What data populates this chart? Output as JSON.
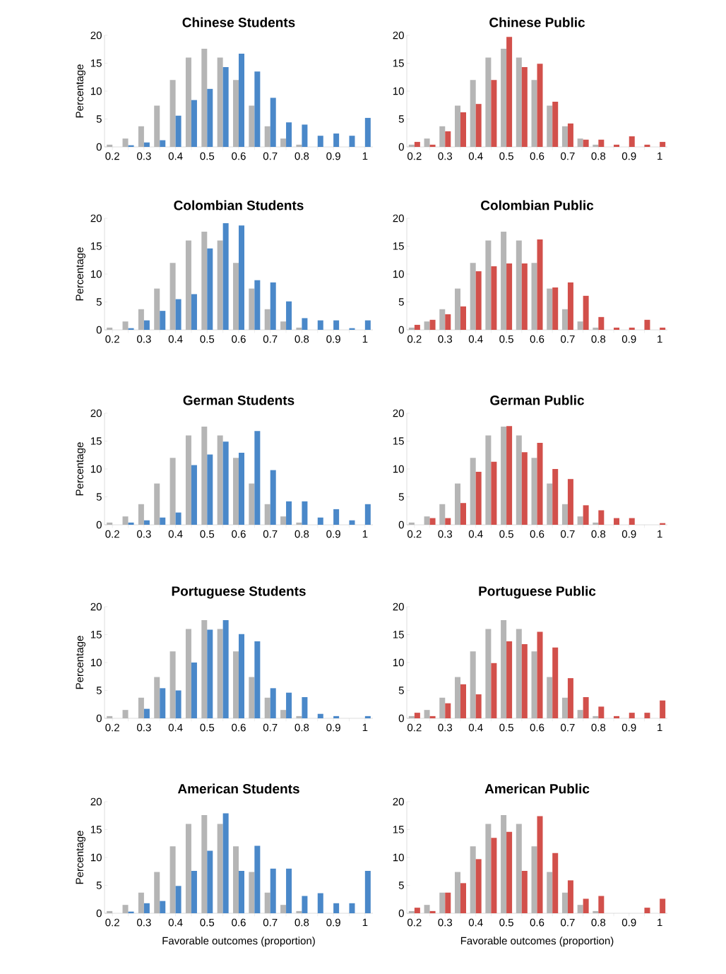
{
  "chart_data": [
    {
      "type": "bar",
      "title": "Chinese Students",
      "ylabel": "Percentage",
      "categories": [
        "0.2",
        null,
        "0.3",
        null,
        "0.4",
        null,
        "0.5",
        null,
        "0.6",
        null,
        "0.7",
        null,
        "0.8",
        null,
        "0.9",
        null,
        "1"
      ],
      "ylim": [
        0,
        20
      ],
      "yticks": [
        0,
        5,
        10,
        15,
        20
      ],
      "series": [
        {
          "color": "#b5b5b5",
          "values": [
            0.4,
            1.5,
            3.7,
            7.4,
            12,
            16,
            17.6,
            16,
            12,
            7.4,
            3.7,
            1.5,
            0.4,
            0,
            0,
            0,
            0
          ]
        },
        {
          "color": "#4a88c9",
          "values": [
            0,
            0.3,
            0.8,
            1.2,
            5.6,
            8.4,
            10.4,
            14.3,
            16.7,
            13.5,
            8.8,
            4.4,
            4.0,
            2.0,
            2.4,
            2.0,
            5.2
          ]
        }
      ]
    },
    {
      "type": "bar",
      "title": "Chinese Public",
      "categories": [
        "0.2",
        null,
        "0.3",
        null,
        "0.4",
        null,
        "0.5",
        null,
        "0.6",
        null,
        "0.7",
        null,
        "0.8",
        null,
        "0.9",
        null,
        "1"
      ],
      "ylim": [
        0,
        20
      ],
      "yticks": [
        0,
        5,
        10,
        15,
        20
      ],
      "series": [
        {
          "color": "#b5b5b5",
          "values": [
            0.4,
            1.5,
            3.7,
            7.4,
            12,
            16,
            17.6,
            16,
            12,
            7.4,
            3.7,
            1.5,
            0.4,
            0,
            0,
            0,
            0
          ]
        },
        {
          "color": "#d2504b",
          "values": [
            0.9,
            0.4,
            2.8,
            6.2,
            7.7,
            12.0,
            19.7,
            14.3,
            14.9,
            8.1,
            4.2,
            1.3,
            1.3,
            0.4,
            1.9,
            0.4,
            0.9
          ]
        }
      ]
    },
    {
      "type": "bar",
      "title": "Colombian Students",
      "ylabel": "Percentage",
      "categories": [
        "0.2",
        null,
        "0.3",
        null,
        "0.4",
        null,
        "0.5",
        null,
        "0.6",
        null,
        "0.7",
        null,
        "0.8",
        null,
        "0.9",
        null,
        "1"
      ],
      "ylim": [
        0,
        20
      ],
      "yticks": [
        0,
        5,
        10,
        15,
        20
      ],
      "series": [
        {
          "color": "#b5b5b5",
          "values": [
            0.4,
            1.5,
            3.7,
            7.4,
            12,
            16,
            17.6,
            16,
            12,
            7.4,
            3.7,
            1.5,
            0.4,
            0,
            0,
            0,
            0
          ]
        },
        {
          "color": "#4a88c9",
          "values": [
            0,
            0.3,
            1.7,
            3.4,
            5.5,
            6.4,
            14.6,
            19.1,
            18.7,
            8.9,
            8.5,
            5.1,
            2.1,
            1.7,
            1.7,
            0.3,
            1.7
          ]
        }
      ]
    },
    {
      "type": "bar",
      "title": "Colombian Public",
      "categories": [
        "0.2",
        null,
        "0.3",
        null,
        "0.4",
        null,
        "0.5",
        null,
        "0.6",
        null,
        "0.7",
        null,
        "0.8",
        null,
        "0.9",
        null,
        "1"
      ],
      "ylim": [
        0,
        20
      ],
      "yticks": [
        0,
        5,
        10,
        15,
        20
      ],
      "series": [
        {
          "color": "#b5b5b5",
          "values": [
            0.4,
            1.5,
            3.7,
            7.4,
            12,
            16,
            17.6,
            16,
            12,
            7.4,
            3.7,
            1.5,
            0.4,
            0,
            0,
            0,
            0
          ]
        },
        {
          "color": "#d2504b",
          "values": [
            0.9,
            1.8,
            2.8,
            4.2,
            10.5,
            11.4,
            11.9,
            11.9,
            16.2,
            7.6,
            8.5,
            6.1,
            2.3,
            0.4,
            0.4,
            1.8,
            0.4
          ]
        }
      ]
    },
    {
      "type": "bar",
      "title": "German Students",
      "ylabel": "Percentage",
      "categories": [
        "0.2",
        null,
        "0.3",
        null,
        "0.4",
        null,
        "0.5",
        null,
        "0.6",
        null,
        "0.7",
        null,
        "0.8",
        null,
        "0.9",
        null,
        "1"
      ],
      "ylim": [
        0,
        20
      ],
      "yticks": [
        0,
        5,
        10,
        15,
        20
      ],
      "series": [
        {
          "color": "#b5b5b5",
          "values": [
            0.4,
            1.5,
            3.7,
            7.4,
            12,
            16,
            17.6,
            16,
            12,
            7.4,
            3.7,
            1.5,
            0.4,
            0,
            0,
            0,
            0
          ]
        },
        {
          "color": "#4a88c9",
          "values": [
            0,
            0.4,
            0.8,
            1.3,
            2.2,
            10.7,
            12.6,
            14.9,
            12.9,
            16.8,
            9.8,
            4.2,
            4.2,
            1.3,
            2.8,
            0.8,
            3.7
          ]
        }
      ]
    },
    {
      "type": "bar",
      "title": "German Public",
      "categories": [
        "0.2",
        null,
        "0.3",
        null,
        "0.4",
        null,
        "0.5",
        null,
        "0.6",
        null,
        "0.7",
        null,
        "0.8",
        null,
        "0.9",
        null,
        "1"
      ],
      "ylim": [
        0,
        20
      ],
      "yticks": [
        0,
        5,
        10,
        15,
        20
      ],
      "series": [
        {
          "color": "#b5b5b5",
          "values": [
            0.4,
            1.5,
            3.7,
            7.4,
            12,
            16,
            17.6,
            16,
            12,
            7.4,
            3.7,
            1.5,
            0.4,
            0,
            0,
            0,
            0
          ]
        },
        {
          "color": "#d2504b",
          "values": [
            0,
            1.2,
            1.2,
            3.9,
            9.5,
            11.3,
            17.7,
            13.0,
            14.7,
            10.0,
            8.2,
            3.5,
            2.6,
            1.2,
            1.2,
            0,
            0.3
          ]
        }
      ]
    },
    {
      "type": "bar",
      "title": "Portuguese Students",
      "ylabel": "Percentage",
      "categories": [
        "0.2",
        null,
        "0.3",
        null,
        "0.4",
        null,
        "0.5",
        null,
        "0.6",
        null,
        "0.7",
        null,
        "0.8",
        null,
        "0.9",
        null,
        "1"
      ],
      "ylim": [
        0,
        20
      ],
      "yticks": [
        0,
        5,
        10,
        15,
        20
      ],
      "series": [
        {
          "color": "#b5b5b5",
          "values": [
            0.4,
            1.5,
            3.7,
            7.4,
            12,
            16,
            17.6,
            16,
            12,
            7.4,
            3.7,
            1.5,
            0.4,
            0,
            0,
            0,
            0
          ]
        },
        {
          "color": "#4a88c9",
          "values": [
            0,
            0,
            1.7,
            5.4,
            5.0,
            10.0,
            15.9,
            17.6,
            15.1,
            13.8,
            5.4,
            4.6,
            3.8,
            0.8,
            0.4,
            0,
            0.4
          ]
        }
      ]
    },
    {
      "type": "bar",
      "title": "Portuguese Public",
      "categories": [
        "0.2",
        null,
        "0.3",
        null,
        "0.4",
        null,
        "0.5",
        null,
        "0.6",
        null,
        "0.7",
        null,
        "0.8",
        null,
        "0.9",
        null,
        "1"
      ],
      "ylim": [
        0,
        20
      ],
      "yticks": [
        0,
        5,
        10,
        15,
        20
      ],
      "series": [
        {
          "color": "#b5b5b5",
          "values": [
            0.4,
            1.5,
            3.7,
            7.4,
            12,
            16,
            17.6,
            16,
            12,
            7.4,
            3.7,
            1.5,
            0.4,
            0,
            0,
            0,
            0
          ]
        },
        {
          "color": "#d2504b",
          "values": [
            1.0,
            0.4,
            2.7,
            6.1,
            4.3,
            9.9,
            13.8,
            13.3,
            15.5,
            12.7,
            7.2,
            3.8,
            2.1,
            0.4,
            1.0,
            1.0,
            3.2
          ]
        }
      ]
    },
    {
      "type": "bar",
      "title": "American Students",
      "ylabel": "Percentage",
      "xlabel": "Favorable outcomes (proportion)",
      "categories": [
        "0.2",
        null,
        "0.3",
        null,
        "0.4",
        null,
        "0.5",
        null,
        "0.6",
        null,
        "0.7",
        null,
        "0.8",
        null,
        "0.9",
        null,
        "1"
      ],
      "ylim": [
        0,
        20
      ],
      "yticks": [
        0,
        5,
        10,
        15,
        20
      ],
      "series": [
        {
          "color": "#b5b5b5",
          "values": [
            0.4,
            1.5,
            3.7,
            7.4,
            12,
            16,
            17.6,
            16,
            12,
            7.4,
            3.7,
            1.5,
            0.4,
            0,
            0,
            0,
            0
          ]
        },
        {
          "color": "#4a88c9",
          "values": [
            0,
            0.3,
            1.8,
            2.2,
            4.9,
            7.6,
            11.2,
            17.9,
            7.6,
            12.1,
            8.0,
            8.0,
            3.1,
            3.6,
            1.8,
            1.8,
            7.6
          ]
        }
      ]
    },
    {
      "type": "bar",
      "title": "American Public",
      "xlabel": "Favorable outcomes (proportion)",
      "categories": [
        "0.2",
        null,
        "0.3",
        null,
        "0.4",
        null,
        "0.5",
        null,
        "0.6",
        null,
        "0.7",
        null,
        "0.8",
        null,
        "0.9",
        null,
        "1"
      ],
      "ylim": [
        0,
        20
      ],
      "yticks": [
        0,
        5,
        10,
        15,
        20
      ],
      "series": [
        {
          "color": "#b5b5b5",
          "values": [
            0.4,
            1.5,
            3.7,
            7.4,
            12,
            16,
            17.6,
            16,
            12,
            7.4,
            3.7,
            1.5,
            0.4,
            0,
            0,
            0,
            0
          ]
        },
        {
          "color": "#d2504b",
          "values": [
            1.0,
            0.4,
            3.7,
            5.4,
            9.7,
            13.5,
            14.6,
            7.6,
            17.4,
            10.8,
            5.9,
            2.6,
            3.1,
            0,
            0,
            1.0,
            2.6
          ]
        }
      ]
    }
  ]
}
